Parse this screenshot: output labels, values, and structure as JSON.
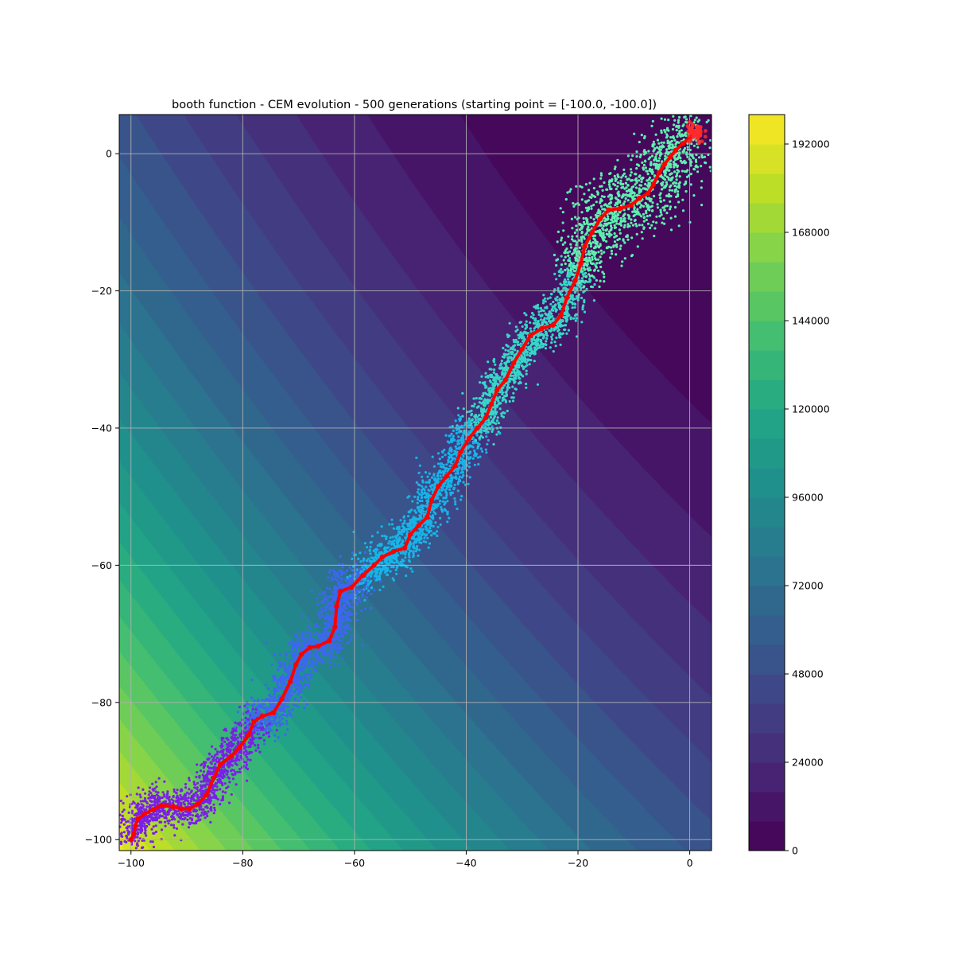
{
  "chart_data": {
    "type": "scatter",
    "title": "booth function - CEM evolution - 500 generations (starting point = [-100.0, -100.0])",
    "xlabel": "",
    "ylabel": "",
    "xlim": [
      -102.1,
      3.9
    ],
    "ylim": [
      -101.6,
      5.7
    ],
    "x_ticks": [
      -100,
      -80,
      -60,
      -40,
      -20,
      0
    ],
    "y_ticks": [
      -100,
      -80,
      -60,
      -40,
      -20,
      0
    ],
    "x_tick_labels": [
      "−100",
      "−80",
      "−60",
      "−40",
      "−20",
      "0"
    ],
    "y_tick_labels": [
      "−100",
      "−80",
      "−60",
      "−40",
      "−20",
      "0"
    ],
    "grid": true,
    "background": {
      "kind": "filled-contour",
      "function": "booth",
      "colormap": "viridis",
      "levels_max": 200000,
      "level_step": 8000
    },
    "colorbar": {
      "ticks": [
        0,
        24000,
        48000,
        72000,
        96000,
        120000,
        144000,
        168000,
        192000
      ],
      "tick_labels": [
        "0",
        "24000",
        "48000",
        "72000",
        "96000",
        "120000",
        "144000",
        "168000",
        "192000"
      ],
      "lim": [
        0,
        200000
      ]
    },
    "mean_path": {
      "color": "#ff0000",
      "points": [
        [
          -100,
          -100
        ],
        [
          -99.5,
          -99.2
        ],
        [
          -99.2,
          -98.0
        ],
        [
          -98.8,
          -97.0
        ],
        [
          -97.5,
          -96.2
        ],
        [
          -96,
          -95.6
        ],
        [
          -94.5,
          -95.0
        ],
        [
          -92.5,
          -95.2
        ],
        [
          -91,
          -95.5
        ],
        [
          -89.5,
          -95.5
        ],
        [
          -88,
          -94.8
        ],
        [
          -86.5,
          -93.5
        ],
        [
          -85.2,
          -91.0
        ],
        [
          -84,
          -89.0
        ],
        [
          -82,
          -87.8
        ],
        [
          -80.5,
          -86.5
        ],
        [
          -79,
          -84.8
        ],
        [
          -78,
          -82.8
        ],
        [
          -76.5,
          -82.0
        ],
        [
          -74.5,
          -81.5
        ],
        [
          -73,
          -79.5
        ],
        [
          -71.5,
          -77.0
        ],
        [
          -70.5,
          -74.5
        ],
        [
          -69.5,
          -73.0
        ],
        [
          -68,
          -72.0
        ],
        [
          -66.5,
          -71.8
        ],
        [
          -64.5,
          -71.0
        ],
        [
          -63.5,
          -69.0
        ],
        [
          -63.2,
          -66.0
        ],
        [
          -62.5,
          -63.8
        ],
        [
          -60.5,
          -63.2
        ],
        [
          -58.5,
          -61.5
        ],
        [
          -56.5,
          -60.0
        ],
        [
          -55,
          -58.8
        ],
        [
          -53,
          -58.0
        ],
        [
          -51,
          -57.5
        ],
        [
          -50,
          -55.5
        ],
        [
          -48.5,
          -54.2
        ],
        [
          -47,
          -53.0
        ],
        [
          -46.2,
          -50.5
        ],
        [
          -45,
          -48.5
        ],
        [
          -43.5,
          -47.0
        ],
        [
          -42,
          -45.5
        ],
        [
          -41,
          -43.5
        ],
        [
          -39.5,
          -41.5
        ],
        [
          -38,
          -40.0
        ],
        [
          -36.5,
          -38.5
        ],
        [
          -35.5,
          -36.5
        ],
        [
          -34.5,
          -34.5
        ],
        [
          -33,
          -33.0
        ],
        [
          -31.5,
          -30.5
        ],
        [
          -30,
          -28.5
        ],
        [
          -28.5,
          -26.5
        ],
        [
          -26.5,
          -25.5
        ],
        [
          -24.5,
          -25.0
        ],
        [
          -23,
          -23.5
        ],
        [
          -22,
          -21.0
        ],
        [
          -20.5,
          -18.5
        ],
        [
          -19.5,
          -16.0
        ],
        [
          -18.8,
          -13.5
        ],
        [
          -17.5,
          -11.5
        ],
        [
          -16,
          -9.5
        ],
        [
          -14.5,
          -8.2
        ],
        [
          -12.5,
          -8.0
        ],
        [
          -10.5,
          -7.5
        ],
        [
          -9,
          -6.5
        ],
        [
          -7.5,
          -5.8
        ],
        [
          -6.5,
          -4.5
        ],
        [
          -5.5,
          -2.8
        ],
        [
          -4.5,
          -1.5
        ],
        [
          -3.5,
          -0.5
        ],
        [
          -2.5,
          0.5
        ],
        [
          -1.2,
          1.5
        ],
        [
          0,
          2.3
        ],
        [
          1,
          3.0
        ]
      ]
    },
    "population_colors": [
      "#7b1fe8",
      "#3d67f0",
      "#18b4e8",
      "#38d6c8",
      "#5ef0b0"
    ],
    "population_samples": 6500
  }
}
